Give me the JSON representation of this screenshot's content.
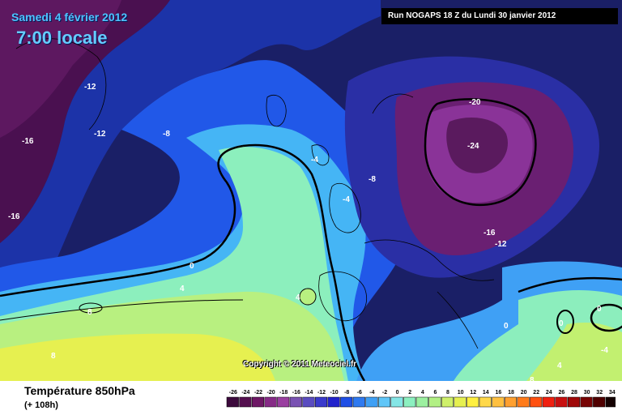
{
  "header": {
    "date": "Samedi 4 février 2012",
    "time": "7:00 locale",
    "run": "Run NOGAPS 18 Z du Lundi 30 janvier 2012",
    "copyright": "Copyright © 2011 Meteociel.fr"
  },
  "footer": {
    "title": "Température 850hPa",
    "lead": "(+ 108h)"
  },
  "contour_labels": [
    {
      "text": "-12"
    },
    {
      "text": "-12"
    },
    {
      "text": "-16"
    },
    {
      "text": "-16"
    },
    {
      "text": "-8"
    },
    {
      "text": "-4"
    },
    {
      "text": "-4"
    },
    {
      "text": "-8"
    },
    {
      "text": "-20"
    },
    {
      "text": "-24"
    },
    {
      "text": "-16"
    },
    {
      "text": "-12"
    },
    {
      "text": "0"
    },
    {
      "text": "4"
    },
    {
      "text": "8"
    },
    {
      "text": "8"
    },
    {
      "text": "4"
    },
    {
      "text": "0"
    },
    {
      "text": "0"
    },
    {
      "text": "0"
    },
    {
      "text": "-4"
    },
    {
      "text": "8"
    },
    {
      "text": "4"
    }
  ],
  "scale": {
    "values": [
      "-26",
      "-24",
      "-22",
      "-20",
      "-18",
      "-16",
      "-14",
      "-12",
      "-10",
      "-8",
      "-6",
      "-4",
      "-2",
      "0",
      "2",
      "4",
      "6",
      "8",
      "10",
      "12",
      "14",
      "16",
      "18",
      "20",
      "22",
      "24",
      "26",
      "28",
      "30",
      "32",
      "34"
    ],
    "colors": [
      "#3c0a3c",
      "#55104f",
      "#6e1765",
      "#862a86",
      "#9a3fa0",
      "#7a52b3",
      "#5a4cc0",
      "#3a3acc",
      "#2222cc",
      "#1f4fe6",
      "#2f7af0",
      "#3fa0f5",
      "#60c6f8",
      "#84e6e6",
      "#8cf0c0",
      "#9cf0a0",
      "#b2f084",
      "#cff06a",
      "#e6f050",
      "#fff040",
      "#ffd84a",
      "#ffc040",
      "#ffa030",
      "#ff7b1a",
      "#ff5010",
      "#f02010",
      "#c81010",
      "#a00808",
      "#780404",
      "#500000",
      "#140000"
    ]
  },
  "colors": {
    "frame_dark": "#1a1f66",
    "ocean_blue": "#1a40d6",
    "cold_core": "#6e1765",
    "warm_yellow": "#e8f040"
  }
}
